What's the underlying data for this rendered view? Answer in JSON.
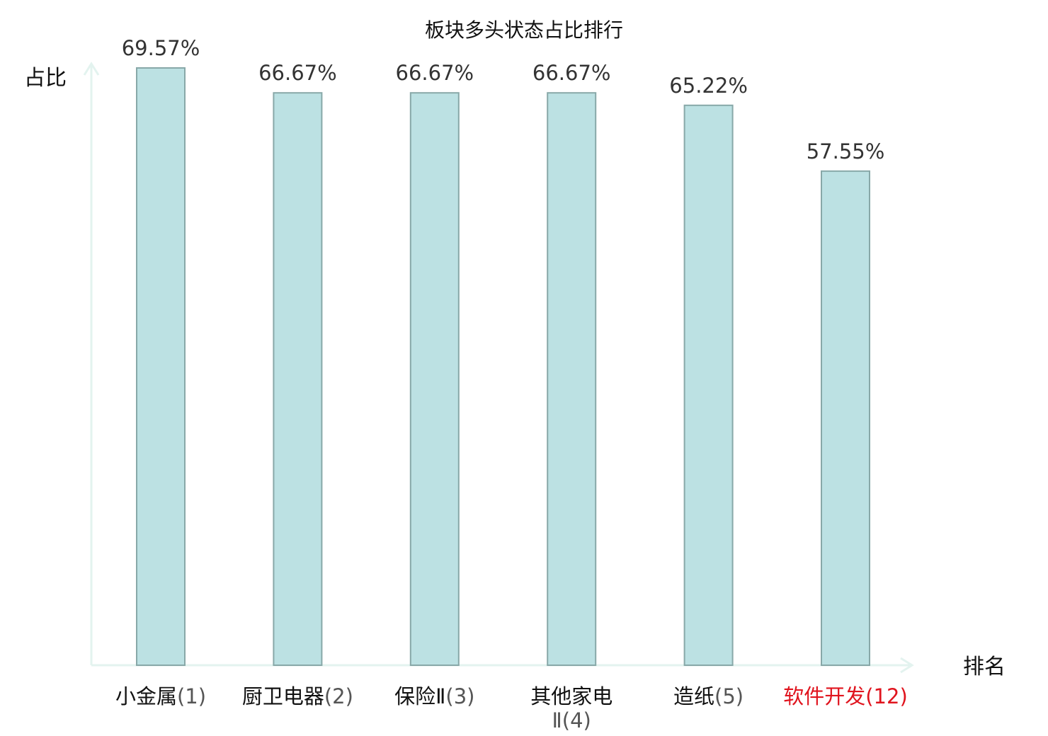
{
  "chart_data": {
    "type": "bar",
    "title": "板块多头状态占比排行",
    "ylabel": "占比",
    "xlabel": "排名",
    "ylim": [
      0,
      70
    ],
    "grid": false,
    "categories": [
      {
        "name": "小金属",
        "rank": "(1)"
      },
      {
        "name": "厨卫电器",
        "rank": "(2)"
      },
      {
        "name": "保险Ⅱ",
        "rank": "(3)"
      },
      {
        "name": "其他家电",
        "rank": "Ⅱ(4)"
      },
      {
        "name": "造纸",
        "rank": "(5)"
      },
      {
        "name": "软件开发",
        "rank": "(12)",
        "highlight": true
      }
    ],
    "values": [
      69.57,
      66.67,
      66.67,
      66.67,
      65.22,
      57.55
    ],
    "value_labels": [
      "69.57%",
      "66.67%",
      "66.67%",
      "66.67%",
      "65.22%",
      "57.55%"
    ],
    "colors": {
      "bar_fill": "#bce1e3",
      "bar_stroke": "#88a8a8",
      "axis": "#e3f3ef",
      "highlight_label": "#e0141e",
      "rank_text": "#555555"
    }
  }
}
